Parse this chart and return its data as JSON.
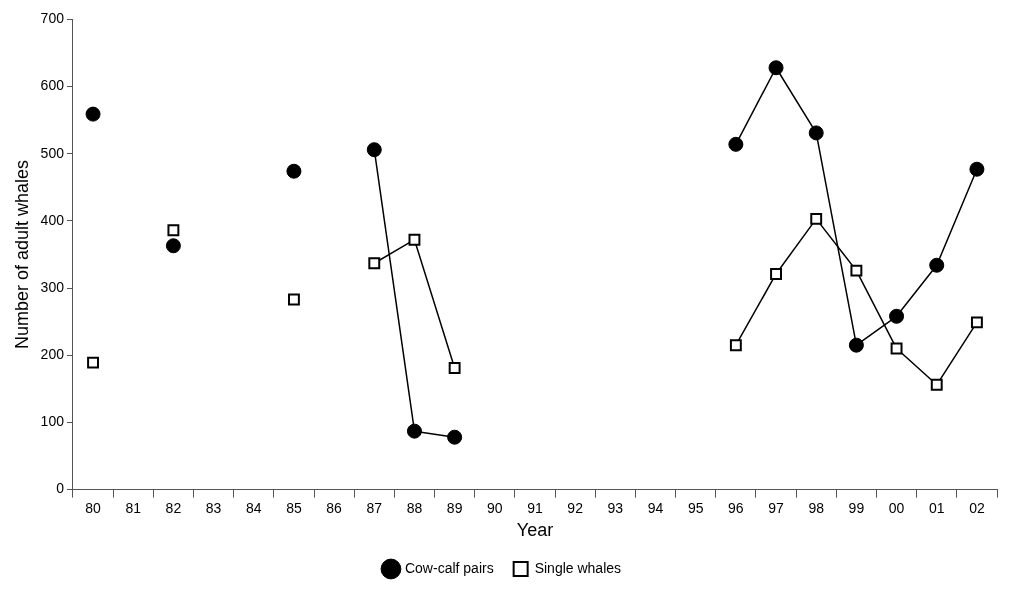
{
  "chart_data": {
    "type": "line",
    "xlabel": "Year",
    "ylabel": "Number of adult whales",
    "categories": [
      "80",
      "81",
      "82",
      "83",
      "84",
      "85",
      "86",
      "87",
      "88",
      "89",
      "90",
      "91",
      "92",
      "93",
      "94",
      "95",
      "96",
      "97",
      "98",
      "99",
      "00",
      "01",
      "02"
    ],
    "series": [
      {
        "name": "Cow-calf pairs",
        "color": "#000000",
        "marker": "circle",
        "values": [
          559,
          null,
          363,
          null,
          null,
          474,
          null,
          506,
          87,
          78,
          null,
          null,
          null,
          null,
          null,
          null,
          514,
          628,
          531,
          215,
          258,
          334,
          477
        ]
      },
      {
        "name": "Single whales",
        "color": "#000000",
        "marker": "square",
        "values": [
          189,
          null,
          386,
          null,
          null,
          283,
          null,
          337,
          372,
          181,
          null,
          null,
          null,
          null,
          null,
          null,
          215,
          321,
          403,
          326,
          210,
          156,
          249
        ]
      }
    ],
    "ylim": [
      0,
      700
    ],
    "yticks": [
      0,
      100,
      200,
      300,
      400,
      500,
      600,
      700
    ],
    "grid": false,
    "legend": "bottom",
    "line_style": "solid"
  }
}
